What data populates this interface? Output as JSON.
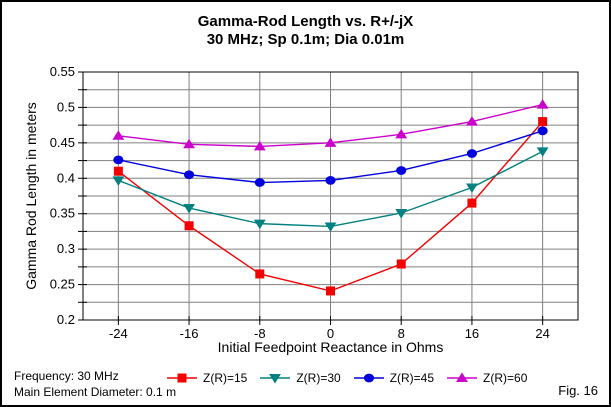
{
  "title": {
    "line1": "Gamma-Rod Length vs. R+/-jX",
    "line2": "30 MHz; Sp 0.1m; Dia 0.01m"
  },
  "chart_data": {
    "type": "line",
    "x": [
      -24,
      -16,
      -8,
      0,
      8,
      16,
      24
    ],
    "series": [
      {
        "name": "Z(R)=15",
        "color": "#f40000",
        "marker": "square",
        "values": [
          0.41,
          0.333,
          0.265,
          0.241,
          0.279,
          0.365,
          0.48
        ]
      },
      {
        "name": "Z(R)=30",
        "color": "#008080",
        "marker": "triangle-down",
        "values": [
          0.397,
          0.358,
          0.336,
          0.332,
          0.351,
          0.387,
          0.438
        ]
      },
      {
        "name": "Z(R)=45",
        "color": "#0000dd",
        "marker": "circle",
        "values": [
          0.426,
          0.405,
          0.394,
          0.397,
          0.411,
          0.435,
          0.467
        ]
      },
      {
        "name": "Z(R)=60",
        "color": "#cc00cc",
        "marker": "triangle-up",
        "values": [
          0.46,
          0.448,
          0.445,
          0.45,
          0.462,
          0.48,
          0.504
        ]
      }
    ],
    "xlabel": "Initial Feedpoint Reactance in Ohms",
    "ylabel": "Gamma Rod Length in meters",
    "xlim": [
      -28,
      28
    ],
    "ylim": [
      0.2,
      0.55
    ],
    "x_ticks": [
      -24,
      -16,
      -8,
      0,
      8,
      16,
      24
    ],
    "x_tick_labels": [
      "-24",
      "-16",
      "-8",
      "0",
      "8",
      "16",
      "24"
    ],
    "y_tick_interval": 0.025,
    "y_label_ticks": [
      [
        0.2,
        "0.2"
      ],
      [
        0.25,
        "0.25"
      ],
      [
        0.3,
        "0.3"
      ],
      [
        0.35,
        "0.35"
      ],
      [
        0.4,
        "0.4"
      ],
      [
        0.45,
        "0.45"
      ],
      [
        0.5,
        "0.5"
      ],
      [
        0.55,
        "0.55"
      ]
    ],
    "grid": true,
    "gridline_color": "#808080",
    "legend_position": "bottom"
  },
  "footer": {
    "line1": "Frequency: 30 MHz",
    "line2": "Main Element Diameter: 0.1 m",
    "fig_label": "Fig. 16"
  }
}
